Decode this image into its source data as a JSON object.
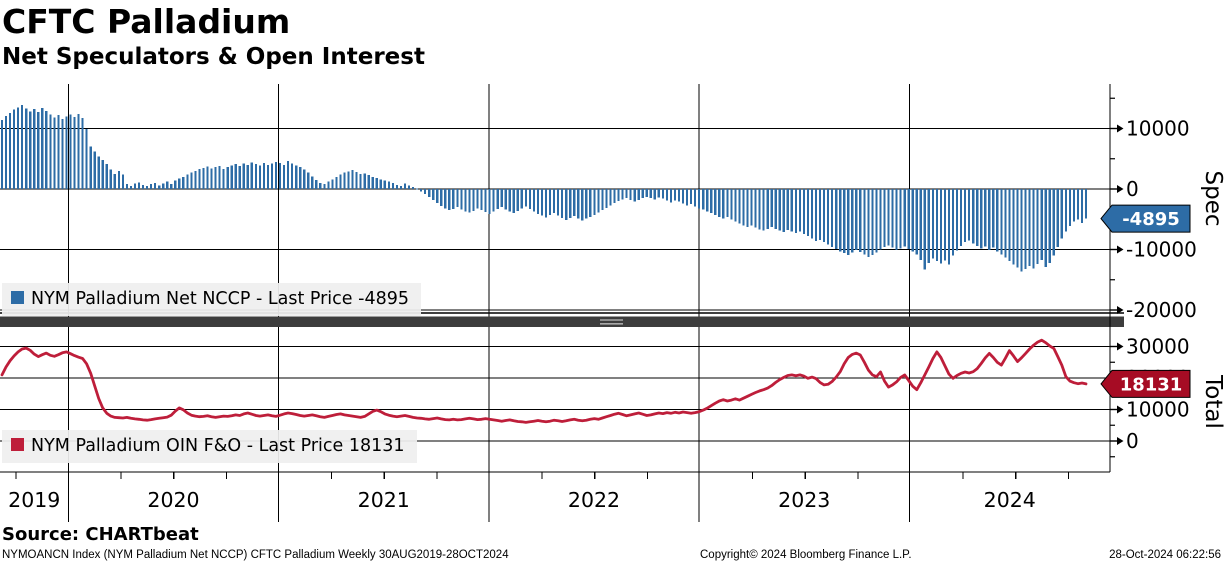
{
  "header": {
    "title": "CFTC Palladium",
    "subtitle": "Net Speculators & Open Interest"
  },
  "source_line": "Source: CHARTbeat",
  "footer": {
    "left": "NYMOANCN Index (NYM Palladium Net NCCP) CFTC Palladium  Weekly 30AUG2019-28OCT2024",
    "center": "Copyright© 2024 Bloomberg Finance L.P.",
    "right": "28-Oct-2024 06:22:56"
  },
  "chart_data": [
    {
      "type": "bar",
      "name": "NYM Palladium Net NCCP",
      "legend": "NYM Palladium Net NCCP - Last Price -4895",
      "axis_title": "Spec",
      "last_price": -4895,
      "color": "#2d6ca6",
      "tag_color": "#2d6ca6",
      "y_ticks": [
        10000,
        0,
        -10000,
        -20000
      ],
      "y_minor_ticks": [
        15000,
        5000,
        -5000,
        -15000
      ],
      "grid_y": [
        10000,
        -10000,
        -20000
      ],
      "ylim": [
        -21500,
        17400
      ],
      "x_years": [
        "2019",
        "2020",
        "2021",
        "2022",
        "2023",
        "2024"
      ],
      "frequency": "Weekly",
      "period": "30AUG2019-28OCT2024",
      "values": [
        11400,
        12100,
        12600,
        13100,
        13500,
        13900,
        13300,
        12800,
        13200,
        12700,
        13400,
        12900,
        12300,
        11800,
        12200,
        11600,
        12000,
        12300,
        11900,
        12400,
        11700,
        9900,
        7000,
        6200,
        5400,
        4800,
        4100,
        3200,
        2500,
        3000,
        2400,
        800,
        500,
        900,
        1100,
        700,
        500,
        800,
        1000,
        600,
        900,
        1200,
        800,
        1400,
        1700,
        2000,
        2400,
        2700,
        3000,
        3300,
        3500,
        3700,
        3400,
        3600,
        3800,
        3300,
        3600,
        3900,
        4100,
        3800,
        4200,
        4000,
        4400,
        4100,
        3900,
        4300,
        4000,
        4200,
        4500,
        4300,
        4000,
        4600,
        4200,
        3900,
        3600,
        3200,
        2700,
        2100,
        1500,
        1000,
        800,
        1200,
        1600,
        2000,
        2400,
        2700,
        2900,
        3100,
        2800,
        2500,
        2600,
        2300,
        2000,
        1800,
        1600,
        1400,
        1200,
        1000,
        700,
        500,
        900,
        600,
        300,
        100,
        -400,
        -800,
        -1300,
        -1800,
        -2300,
        -2800,
        -3200,
        -3500,
        -3300,
        -3000,
        -3400,
        -3700,
        -3900,
        -3600,
        -3200,
        -3500,
        -3800,
        -4100,
        -3700,
        -3300,
        -3000,
        -3400,
        -3700,
        -4000,
        -3600,
        -3200,
        -2900,
        -3300,
        -3700,
        -4100,
        -4400,
        -4700,
        -4300,
        -4000,
        -4400,
        -4800,
        -5100,
        -4800,
        -4500,
        -4900,
        -5200,
        -4900,
        -4600,
        -4300,
        -3900,
        -3500,
        -3100,
        -2700,
        -2300,
        -2000,
        -1700,
        -1500,
        -1800,
        -2100,
        -1800,
        -1500,
        -1300,
        -1500,
        -1700,
        -1400,
        -1600,
        -1900,
        -2200,
        -1900,
        -2100,
        -2400,
        -2700,
        -2500,
        -2900,
        -3200,
        -3400,
        -3700,
        -4000,
        -4300,
        -4600,
        -4900,
        -4600,
        -5000,
        -5400,
        -5700,
        -6000,
        -6300,
        -6000,
        -6400,
        -6700,
        -6900,
        -6600,
        -6300,
        -6600,
        -6900,
        -7100,
        -6800,
        -7000,
        -7300,
        -7000,
        -7400,
        -7800,
        -8200,
        -8600,
        -8400,
        -8800,
        -9200,
        -9600,
        -9900,
        -10300,
        -10600,
        -10900,
        -10500,
        -10100,
        -10400,
        -10800,
        -11200,
        -10900,
        -10500,
        -10000,
        -9600,
        -9300,
        -9700,
        -10100,
        -9800,
        -9500,
        -9900,
        -10300,
        -10800,
        -11700,
        -13300,
        -12200,
        -11500,
        -11900,
        -12300,
        -11800,
        -12500,
        -11000,
        -10200,
        -9400,
        -8800,
        -8500,
        -9000,
        -9400,
        -9800,
        -9500,
        -10100,
        -9700,
        -10300,
        -10800,
        -11300,
        -11900,
        -12500,
        -13000,
        -13600,
        -13200,
        -12700,
        -13100,
        -12400,
        -11700,
        -12900,
        -12200,
        -11000,
        -9600,
        -8200,
        -7000,
        -6100,
        -5400,
        -5000,
        -5600,
        -4895
      ]
    },
    {
      "type": "line",
      "name": "NYM Palladium OIN F&O",
      "legend": "NYM Palladium OIN F&O - Last Price 18131",
      "axis_title": "Total",
      "last_price": 18131,
      "color": "#be1e3a",
      "tag_color": "#a60c24",
      "y_ticks": [
        30000,
        20000,
        10000,
        0
      ],
      "y_minor_ticks": [
        25000,
        15000,
        5000,
        -5000
      ],
      "grid_y": [
        30000,
        20000,
        10000,
        0
      ],
      "ylim": [
        -10000,
        34800
      ],
      "values": [
        21000,
        23500,
        25500,
        27000,
        28300,
        29200,
        29500,
        28800,
        27600,
        26800,
        27400,
        27900,
        27200,
        26900,
        27400,
        28000,
        28300,
        27700,
        27100,
        26600,
        26200,
        24500,
        21500,
        17500,
        13500,
        10500,
        8800,
        7900,
        7500,
        7400,
        7300,
        7500,
        7200,
        7000,
        6900,
        6700,
        6600,
        6800,
        7000,
        7200,
        7400,
        7600,
        8200,
        9500,
        10500,
        9900,
        8900,
        8200,
        7900,
        7700,
        7800,
        8000,
        7700,
        7500,
        7700,
        7900,
        7800,
        8000,
        8300,
        8100,
        8600,
        8900,
        8500,
        8100,
        7900,
        8100,
        8300,
        8000,
        7800,
        8200,
        8600,
        8900,
        8700,
        8400,
        8100,
        7900,
        8100,
        8300,
        8000,
        7700,
        7500,
        7800,
        8100,
        8400,
        8600,
        8300,
        8100,
        7900,
        7700,
        7500,
        7800,
        8600,
        9400,
        9800,
        9300,
        8600,
        8200,
        7900,
        7700,
        7900,
        8100,
        7800,
        7500,
        7300,
        7200,
        7000,
        6900,
        7100,
        7300,
        7000,
        6800,
        6700,
        6900,
        6700,
        6800,
        7000,
        7200,
        7000,
        6800,
        6900,
        7100,
        6900,
        6700,
        6500,
        6300,
        6500,
        6700,
        6400,
        6200,
        6100,
        5900,
        6100,
        6300,
        6500,
        6300,
        6100,
        6300,
        6600,
        6400,
        6200,
        6400,
        6700,
        6900,
        6600,
        6400,
        6600,
        6900,
        7100,
        6900,
        7300,
        7700,
        8100,
        8500,
        8800,
        8400,
        8000,
        8300,
        8600,
        8900,
        8500,
        8100,
        8300,
        8600,
        8900,
        8700,
        9000,
        8800,
        9100,
        8900,
        9200,
        9000,
        8800,
        9000,
        9300,
        9800,
        10400,
        11200,
        12000,
        12700,
        13100,
        12700,
        13000,
        13400,
        13000,
        13600,
        14200,
        14800,
        15400,
        15900,
        16300,
        16800,
        17600,
        18600,
        19500,
        20200,
        20800,
        21000,
        20700,
        21000,
        20600,
        19900,
        20300,
        19800,
        18600,
        17800,
        18000,
        18900,
        20300,
        22000,
        24500,
        26500,
        27500,
        27900,
        27300,
        25000,
        22500,
        21000,
        20400,
        21900,
        19000,
        17100,
        17800,
        18800,
        20200,
        21000,
        19200,
        17400,
        16300,
        18500,
        21000,
        23500,
        26200,
        28300,
        26500,
        23800,
        21200,
        19900,
        20800,
        21500,
        21900,
        21600,
        22000,
        23000,
        24600,
        26400,
        27800,
        26500,
        25000,
        24100,
        26300,
        28700,
        27000,
        25200,
        26400,
        27800,
        29200,
        30400,
        31400,
        32000,
        31200,
        30200,
        29400,
        26800,
        24100,
        20400,
        19000,
        18500,
        18200,
        18400,
        18131
      ]
    }
  ]
}
